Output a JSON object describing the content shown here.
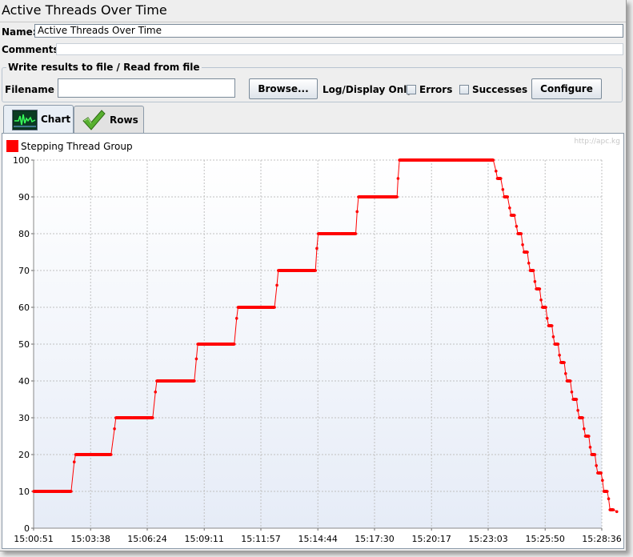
{
  "window": {
    "title": "Active Threads Over Time",
    "name_label": "Name:",
    "name_value": "Active Threads Over Time",
    "comments_label": "Comments:",
    "comments_value": ""
  },
  "file_group": {
    "title": "Write results to file / Read from file",
    "filename_label": "Filename",
    "filename_value": "",
    "browse_label": "Browse...",
    "log_display_label": "Log/Display Only:",
    "errors_label": "Errors",
    "errors_checked": false,
    "successes_label": "Successes",
    "successes_checked": false,
    "configure_label": "Configure"
  },
  "tabs": [
    {
      "label": "Chart",
      "icon": "chart-icon",
      "active": true
    },
    {
      "label": "Rows",
      "icon": "checkmark-icon",
      "active": false
    }
  ],
  "watermark": "http://apc.kg",
  "colors": {
    "series": "#ff0000",
    "grid": "#c0c0c0",
    "plot_bg_top": "#ffffff",
    "plot_bg_bottom": "#e6ecf7"
  },
  "chart_data": {
    "type": "line",
    "legend": "top-left",
    "series": [
      {
        "name": "Stepping Thread Group",
        "points": [
          [
            "15:00:51",
            10
          ],
          [
            "15:01:30",
            10
          ],
          [
            "15:02:10",
            10
          ],
          [
            "15:02:41",
            10
          ],
          [
            "15:02:50",
            18
          ],
          [
            "15:02:54",
            20
          ],
          [
            "15:03:38",
            20
          ],
          [
            "15:04:38",
            20
          ],
          [
            "15:04:48",
            27
          ],
          [
            "15:04:52",
            30
          ],
          [
            "15:05:40",
            30
          ],
          [
            "15:06:40",
            30
          ],
          [
            "15:06:48",
            37
          ],
          [
            "15:06:52",
            40
          ],
          [
            "15:07:50",
            40
          ],
          [
            "15:08:42",
            40
          ],
          [
            "15:08:48",
            46
          ],
          [
            "15:08:52",
            50
          ],
          [
            "15:09:50",
            50
          ],
          [
            "15:10:39",
            50
          ],
          [
            "15:10:46",
            57
          ],
          [
            "15:10:50",
            60
          ],
          [
            "15:11:50",
            60
          ],
          [
            "15:12:37",
            60
          ],
          [
            "15:12:44",
            66
          ],
          [
            "15:12:48",
            70
          ],
          [
            "15:13:50",
            70
          ],
          [
            "15:14:37",
            70
          ],
          [
            "15:14:41",
            76
          ],
          [
            "15:14:45",
            80
          ],
          [
            "15:15:50",
            80
          ],
          [
            "15:16:35",
            80
          ],
          [
            "15:16:39",
            86
          ],
          [
            "15:16:43",
            90
          ],
          [
            "15:17:30",
            90
          ],
          [
            "15:18:36",
            90
          ],
          [
            "15:18:39",
            95
          ],
          [
            "15:18:43",
            100
          ],
          [
            "15:20:00",
            100
          ],
          [
            "15:21:30",
            100
          ],
          [
            "15:23:18",
            100
          ],
          [
            "15:23:26",
            97
          ],
          [
            "15:23:30",
            95
          ],
          [
            "15:23:40",
            95
          ],
          [
            "15:23:46",
            92
          ],
          [
            "15:23:50",
            90
          ],
          [
            "15:24:00",
            90
          ],
          [
            "15:24:06",
            87
          ],
          [
            "15:24:10",
            85
          ],
          [
            "15:24:20",
            85
          ],
          [
            "15:24:26",
            82
          ],
          [
            "15:24:30",
            80
          ],
          [
            "15:24:40",
            80
          ],
          [
            "15:24:44",
            77
          ],
          [
            "15:24:48",
            75
          ],
          [
            "15:24:58",
            75
          ],
          [
            "15:25:02",
            72
          ],
          [
            "15:25:06",
            70
          ],
          [
            "15:25:16",
            70
          ],
          [
            "15:25:20",
            67
          ],
          [
            "15:25:24",
            65
          ],
          [
            "15:25:34",
            65
          ],
          [
            "15:25:38",
            62
          ],
          [
            "15:25:42",
            60
          ],
          [
            "15:25:52",
            60
          ],
          [
            "15:25:56",
            57
          ],
          [
            "15:26:00",
            55
          ],
          [
            "15:26:10",
            55
          ],
          [
            "15:26:14",
            52
          ],
          [
            "15:26:18",
            50
          ],
          [
            "15:26:28",
            50
          ],
          [
            "15:26:32",
            47
          ],
          [
            "15:26:36",
            45
          ],
          [
            "15:26:46",
            45
          ],
          [
            "15:26:50",
            42
          ],
          [
            "15:26:54",
            40
          ],
          [
            "15:27:04",
            40
          ],
          [
            "15:27:08",
            37
          ],
          [
            "15:27:12",
            35
          ],
          [
            "15:27:22",
            35
          ],
          [
            "15:27:26",
            32
          ],
          [
            "15:27:30",
            30
          ],
          [
            "15:27:40",
            30
          ],
          [
            "15:27:44",
            27
          ],
          [
            "15:27:48",
            25
          ],
          [
            "15:27:58",
            25
          ],
          [
            "15:28:02",
            22
          ],
          [
            "15:28:06",
            20
          ],
          [
            "15:28:16",
            20
          ],
          [
            "15:28:20",
            17
          ],
          [
            "15:28:24",
            15
          ],
          [
            "15:28:34",
            15
          ],
          [
            "15:28:38",
            13
          ],
          [
            "15:28:42",
            10
          ],
          [
            "15:28:52",
            10
          ],
          [
            "15:28:56",
            8
          ],
          [
            "15:29:00",
            5
          ],
          [
            "15:29:10",
            5
          ],
          [
            "15:29:20",
            4.5
          ]
        ]
      }
    ],
    "x_ticks": [
      "15:00:51",
      "15:03:38",
      "15:06:24",
      "15:09:11",
      "15:11:57",
      "15:14:44",
      "15:17:30",
      "15:20:17",
      "15:23:03",
      "15:25:50",
      "15:28:36"
    ],
    "y_ticks": [
      0,
      10,
      20,
      30,
      40,
      50,
      60,
      70,
      80,
      90,
      100
    ],
    "xlim": [
      "15:00:51",
      "15:28:36"
    ],
    "ylim": [
      0,
      100
    ],
    "grid": true,
    "title": "",
    "xlabel": "",
    "ylabel": ""
  }
}
